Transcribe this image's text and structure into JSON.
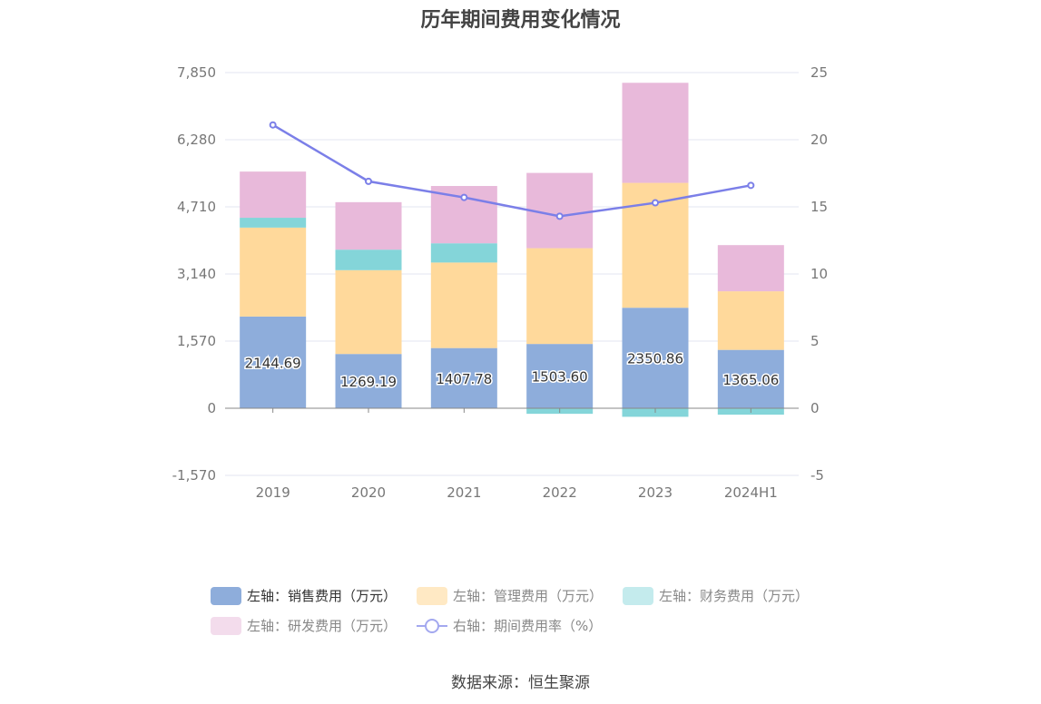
{
  "chart_data": {
    "type": "bar",
    "title": "历年期间费用变化情况",
    "categories": [
      "2019",
      "2020",
      "2021",
      "2022",
      "2023",
      "2024H1"
    ],
    "left_axis": {
      "min": -1570,
      "max": 7850,
      "ticks": [
        "-1,570",
        "0",
        "1,570",
        "3,140",
        "4,710",
        "6,280",
        "7,850"
      ],
      "tick_values": [
        -1570,
        0,
        1570,
        3140,
        4710,
        6280,
        7850
      ]
    },
    "right_axis": {
      "min": -5,
      "max": 25,
      "ticks": [
        "-5",
        "0",
        "5",
        "10",
        "15",
        "20",
        "25"
      ],
      "tick_values": [
        -5,
        0,
        5,
        10,
        15,
        20,
        25
      ]
    },
    "series": [
      {
        "name": "左轴：销售费用（万元）",
        "type": "bar",
        "axis": "left",
        "color": "#8eaddb",
        "values": [
          2144.69,
          1269.19,
          1407.78,
          1503.6,
          2350.86,
          1365.06
        ],
        "labels": [
          "2144.69",
          "1269.19",
          "1407.78",
          "1503.60",
          "2350.86",
          "1365.06"
        ]
      },
      {
        "name": "左轴：管理费用（万元）",
        "type": "bar",
        "axis": "left",
        "color": "#ffd99b",
        "values": [
          2080,
          1960,
          2000,
          2240,
          2920,
          1370
        ]
      },
      {
        "name": "左轴：财务费用（万元）",
        "type": "bar",
        "axis": "left",
        "color": "#84d5d9",
        "values": [
          230,
          480,
          450,
          -130,
          -200,
          -150
        ]
      },
      {
        "name": "左轴：研发费用（万元）",
        "type": "bar",
        "axis": "left",
        "color": "#e8b9da",
        "values": [
          1080,
          1110,
          1340,
          1760,
          2340,
          1080
        ]
      },
      {
        "name": "右轴：期间费用率（%）",
        "type": "line",
        "axis": "right",
        "color": "#7b7fe8",
        "values": [
          21.1,
          16.9,
          15.7,
          14.3,
          15.3,
          16.6
        ]
      }
    ],
    "legend_position": "bottom",
    "grid": true
  },
  "legend": {
    "row1": [
      "左轴：销售费用（万元）",
      "左轴：管理费用（万元）",
      "左轴：财务费用（万元）"
    ],
    "row2": [
      "左轴：研发费用（万元）",
      "右轴：期间费用率（%）"
    ]
  },
  "source": "数据来源：恒生聚源"
}
